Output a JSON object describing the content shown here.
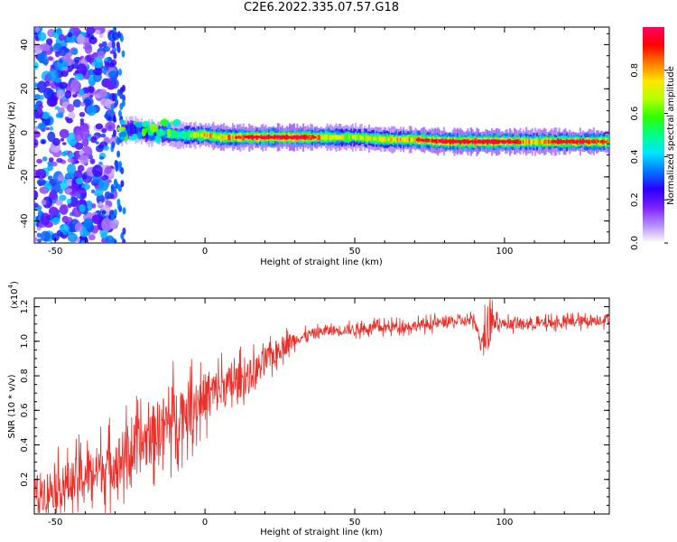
{
  "title": "C2E6.2022.335.07.57.G18",
  "chart_data": [
    {
      "type": "heatmap",
      "xlabel": "Height of straight line (km)",
      "ylabel": "Frequency (Hz)",
      "xlim": [
        -57,
        135
      ],
      "ylim": [
        -50,
        48
      ],
      "xticks": [
        -50,
        0,
        50,
        100
      ],
      "yticks": [
        -40,
        -20,
        0,
        20,
        40
      ],
      "colorbar": {
        "label": "Normalized spectral amplitude",
        "range": [
          0,
          1
        ],
        "ticks": [
          0.0,
          0.2,
          0.4,
          0.6,
          0.8
        ],
        "colors": [
          "#ffffff",
          "#b48cff",
          "#7a1fff",
          "#2a00ff",
          "#0078ff",
          "#00e5ff",
          "#00ff8a",
          "#2eff00",
          "#b4ff00",
          "#ffe600",
          "#ff7a00",
          "#ff0000",
          "#ff0060"
        ]
      },
      "ridge": {
        "x": [
          -28,
          -25,
          -20,
          -15,
          -10,
          -5,
          0,
          5,
          10,
          20,
          30,
          40,
          50,
          60,
          70,
          80,
          90,
          100,
          110,
          120,
          135
        ],
        "y": [
          0,
          2,
          0,
          0,
          -1,
          -1,
          -1,
          -2,
          -2,
          -2,
          -2,
          -2,
          -2,
          -3,
          -3,
          -4,
          -4,
          -4,
          -4,
          -4,
          -4
        ],
        "amplitude": [
          0.55,
          0.45,
          0.5,
          0.55,
          0.6,
          0.7,
          0.8,
          0.8,
          0.85,
          0.95,
          0.95,
          0.8,
          0.7,
          0.75,
          0.85,
          0.9,
          0.95,
          0.9,
          0.8,
          0.9,
          0.85
        ]
      },
      "noise_region_x": [
        -57,
        -30
      ]
    },
    {
      "type": "line",
      "xlabel": "Height of straight line (km)",
      "ylabel": "SNR (10 * v/v)",
      "y_multiplier_label": "(x10",
      "y_multiplier_exp": "4",
      "xlim": [
        -57,
        135
      ],
      "ylim": [
        0.0,
        1.25
      ],
      "xticks": [
        -50,
        0,
        50,
        100
      ],
      "yticks": [
        0.2,
        0.4,
        0.6,
        0.8,
        1.0,
        1.2
      ],
      "color": "#e8302a",
      "series": [
        {
          "x": [
            -57,
            -50,
            -45,
            -40,
            -35,
            -30,
            -25,
            -20,
            -15,
            -10,
            -5,
            0,
            5,
            10,
            15,
            20,
            25,
            30,
            35,
            40,
            50,
            60,
            70,
            80,
            90,
            92,
            95,
            100,
            110,
            120,
            130,
            135
          ],
          "y": [
            0.12,
            0.15,
            0.18,
            0.22,
            0.26,
            0.3,
            0.35,
            0.42,
            0.5,
            0.56,
            0.62,
            0.68,
            0.72,
            0.76,
            0.8,
            0.88,
            0.96,
            1.01,
            1.04,
            1.06,
            1.07,
            1.08,
            1.09,
            1.11,
            1.12,
            1.0,
            1.13,
            1.1,
            1.1,
            1.11,
            1.12,
            1.13
          ]
        }
      ]
    }
  ]
}
